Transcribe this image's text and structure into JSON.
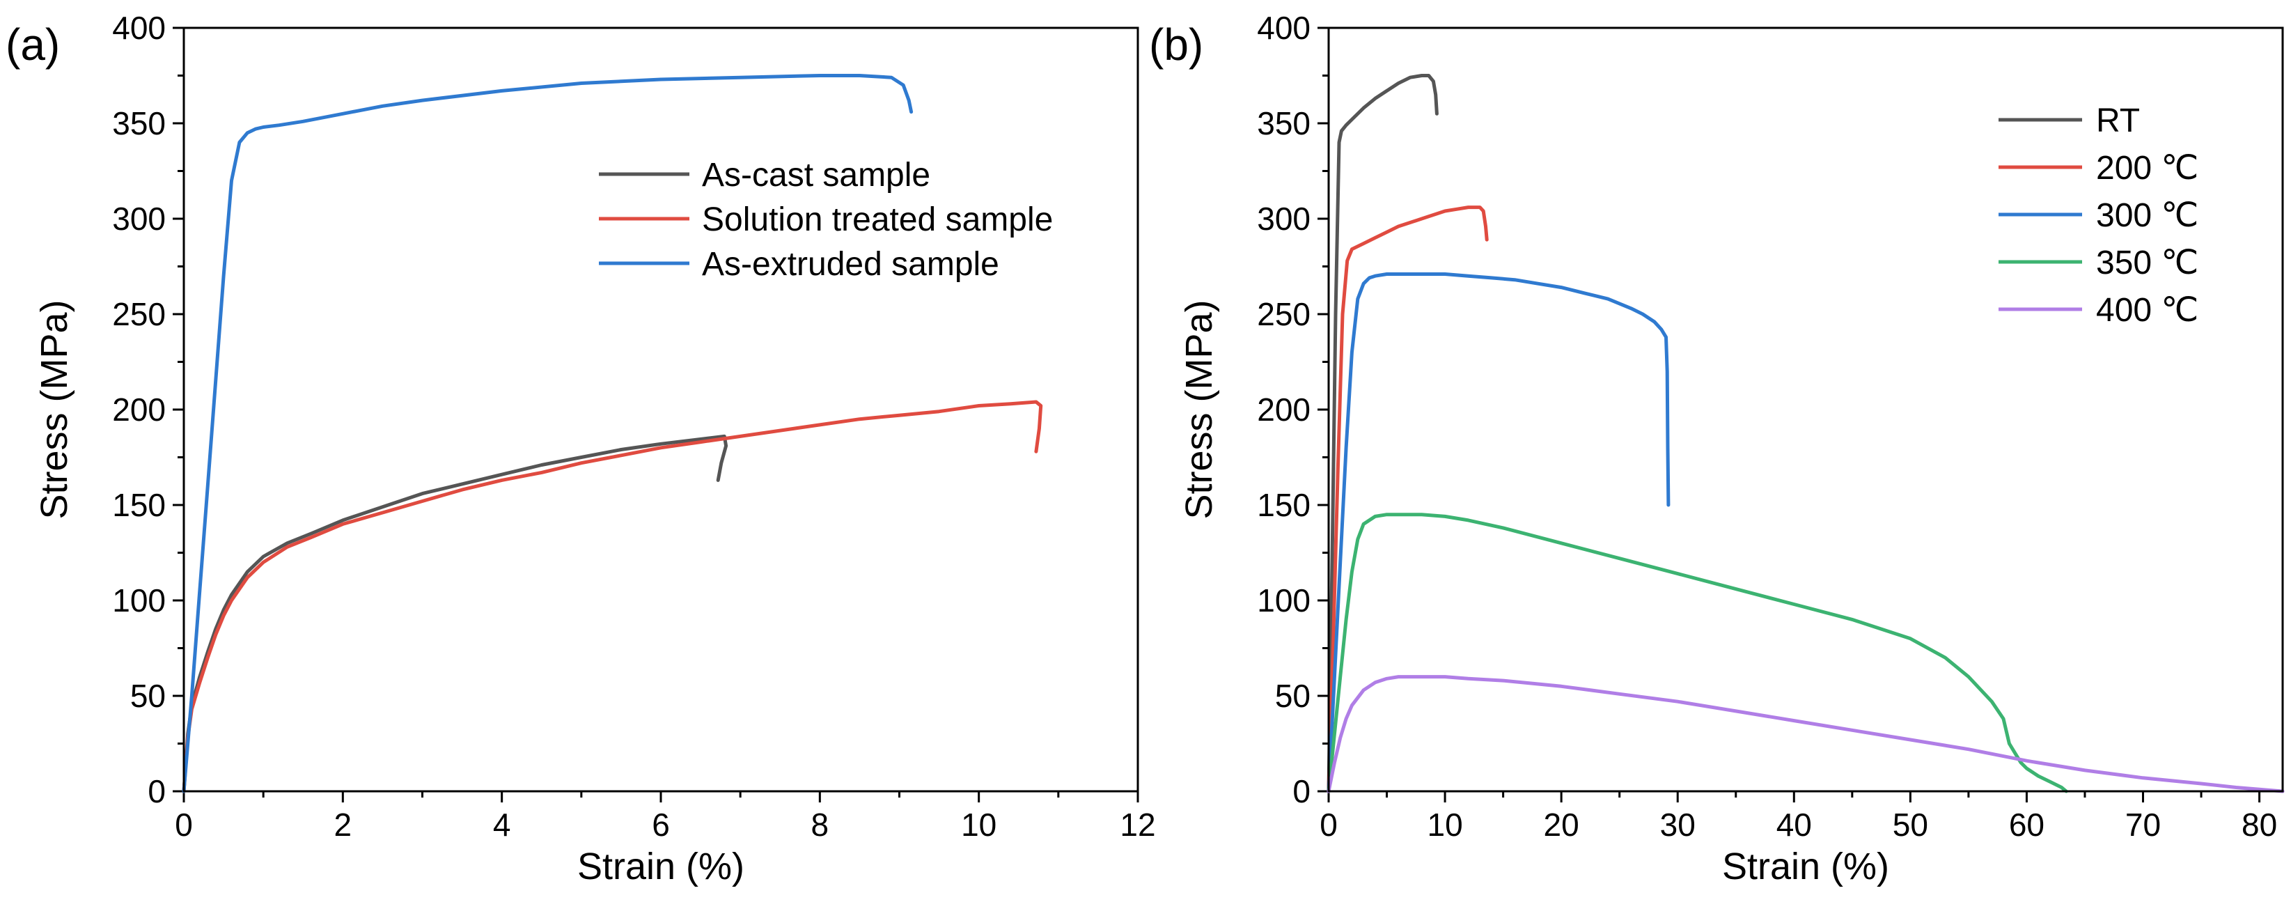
{
  "chart_data": [
    {
      "type": "line",
      "panel_label": "(a)",
      "xlabel": "Strain (%)",
      "ylabel": "Stress (MPa)",
      "xlim": [
        0,
        12
      ],
      "ylim": [
        0,
        400
      ],
      "xticks": [
        0,
        2,
        4,
        6,
        8,
        10,
        12
      ],
      "yticks": [
        0,
        50,
        100,
        150,
        200,
        250,
        300,
        350,
        400
      ],
      "grid": false,
      "legend_position": "top-right",
      "series": [
        {
          "name": "As-cast sample",
          "color": "#555555",
          "x": [
            0,
            0.05,
            0.1,
            0.2,
            0.3,
            0.4,
            0.5,
            0.6,
            0.8,
            1.0,
            1.3,
            1.6,
            2.0,
            2.5,
            3.0,
            3.5,
            4.0,
            4.5,
            5.0,
            5.5,
            6.0,
            6.4,
            6.8,
            6.82,
            6.76,
            6.72
          ],
          "y": [
            0,
            30,
            45,
            60,
            73,
            85,
            95,
            103,
            115,
            123,
            130,
            135,
            142,
            149,
            156,
            161,
            166,
            171,
            175,
            179,
            182,
            184,
            186,
            181,
            172,
            163
          ]
        },
        {
          "name": "Solution treated sample",
          "color": "#e04b40",
          "x": [
            0,
            0.05,
            0.1,
            0.2,
            0.3,
            0.4,
            0.5,
            0.6,
            0.8,
            1.0,
            1.3,
            1.6,
            2.0,
            2.5,
            3.0,
            3.5,
            4.0,
            4.5,
            5.0,
            5.5,
            6.0,
            6.5,
            7.0,
            7.5,
            8.0,
            8.5,
            9.0,
            9.5,
            10.0,
            10.4,
            10.72,
            10.78,
            10.76,
            10.72
          ],
          "y": [
            0,
            28,
            43,
            57,
            70,
            82,
            92,
            100,
            112,
            120,
            128,
            133,
            140,
            146,
            152,
            158,
            163,
            167,
            172,
            176,
            180,
            183,
            186,
            189,
            192,
            195,
            197,
            199,
            202,
            203,
            204,
            202,
            190,
            178
          ]
        },
        {
          "name": "As-extruded sample",
          "color": "#2f7ad0",
          "x": [
            0,
            0.1,
            0.2,
            0.3,
            0.4,
            0.5,
            0.6,
            0.7,
            0.8,
            0.9,
            1.0,
            1.2,
            1.5,
            2.0,
            2.5,
            3.0,
            4.0,
            5.0,
            6.0,
            7.0,
            8.0,
            8.5,
            8.9,
            9.05,
            9.12,
            9.15
          ],
          "y": [
            0,
            50,
            105,
            160,
            215,
            270,
            320,
            340,
            345,
            347,
            348,
            349,
            351,
            355,
            359,
            362,
            367,
            371,
            373,
            374,
            375,
            375,
            374,
            370,
            362,
            356
          ]
        }
      ]
    },
    {
      "type": "line",
      "panel_label": "(b)",
      "xlabel": "Strain (%)",
      "ylabel": "Stress (MPa)",
      "xlim": [
        0,
        82
      ],
      "ylim": [
        0,
        400
      ],
      "xticks": [
        0,
        10,
        20,
        30,
        40,
        50,
        60,
        70,
        80
      ],
      "yticks": [
        0,
        50,
        100,
        150,
        200,
        250,
        300,
        350,
        400
      ],
      "grid": false,
      "legend_position": "top-right",
      "series": [
        {
          "name": "RT",
          "color": "#555555",
          "x": [
            0,
            0.3,
            0.6,
            0.9,
            1.1,
            1.5,
            2.0,
            3.0,
            4.0,
            5.0,
            6.0,
            7.0,
            8.0,
            8.6,
            9.0,
            9.2,
            9.3
          ],
          "y": [
            0,
            120,
            250,
            340,
            346,
            349,
            352,
            358,
            363,
            367,
            371,
            374,
            375,
            375,
            372,
            365,
            355
          ]
        },
        {
          "name": "200 ℃",
          "color": "#e04b40",
          "x": [
            0,
            0.4,
            0.8,
            1.2,
            1.6,
            2.0,
            3.0,
            4.0,
            5.0,
            6.0,
            7.0,
            8.0,
            9.0,
            10.0,
            11.0,
            12.0,
            13.0,
            13.3,
            13.5,
            13.6
          ],
          "y": [
            0,
            80,
            170,
            250,
            278,
            284,
            287,
            290,
            293,
            296,
            298,
            300,
            302,
            304,
            305,
            306,
            306,
            304,
            296,
            289
          ]
        },
        {
          "name": "300 ℃",
          "color": "#2f7ad0",
          "x": [
            0,
            0.5,
            1.0,
            1.5,
            2.0,
            2.5,
            3.0,
            3.5,
            4.0,
            5.0,
            6.0,
            8.0,
            10.0,
            12.0,
            14.0,
            16.0,
            18.0,
            20.0,
            22.0,
            24.0,
            26.0,
            27.0,
            28.0,
            28.6,
            29.0,
            29.1,
            29.15,
            29.2
          ],
          "y": [
            0,
            60,
            120,
            180,
            230,
            258,
            266,
            269,
            270,
            271,
            271,
            271,
            271,
            270,
            269,
            268,
            266,
            264,
            261,
            258,
            253,
            250,
            246,
            242,
            238,
            220,
            180,
            150
          ]
        },
        {
          "name": "350 ℃",
          "color": "#3cb371",
          "x": [
            0,
            0.5,
            1.0,
            1.5,
            2.0,
            2.5,
            3.0,
            4.0,
            5.0,
            6.0,
            7.0,
            8.0,
            10.0,
            12.0,
            15.0,
            20.0,
            25.0,
            30.0,
            35.0,
            40.0,
            45.0,
            50.0,
            53.0,
            55.0,
            57.0,
            58.0,
            58.5,
            59.0,
            59.5,
            60.0,
            61.0,
            62.0,
            63.0,
            63.4
          ],
          "y": [
            0,
            30,
            60,
            90,
            115,
            132,
            140,
            144,
            145,
            145,
            145,
            145,
            144,
            142,
            138,
            130,
            122,
            114,
            106,
            98,
            90,
            80,
            70,
            60,
            47,
            38,
            25,
            20,
            15,
            12,
            8,
            5,
            2,
            0
          ]
        },
        {
          "name": "400 ℃",
          "color": "#b07ee6",
          "x": [
            0,
            0.5,
            1.0,
            1.5,
            2.0,
            3.0,
            4.0,
            5.0,
            6.0,
            7.0,
            8.0,
            10.0,
            12.0,
            15.0,
            20.0,
            25.0,
            30.0,
            35.0,
            40.0,
            45.0,
            50.0,
            55.0,
            60.0,
            65.0,
            70.0,
            75.0,
            78.0,
            80.0,
            82.0
          ],
          "y": [
            0,
            15,
            28,
            38,
            45,
            53,
            57,
            59,
            60,
            60,
            60,
            60,
            59,
            58,
            55,
            51,
            47,
            42,
            37,
            32,
            27,
            22,
            16,
            11,
            7,
            4,
            2,
            1,
            0
          ]
        }
      ]
    }
  ]
}
